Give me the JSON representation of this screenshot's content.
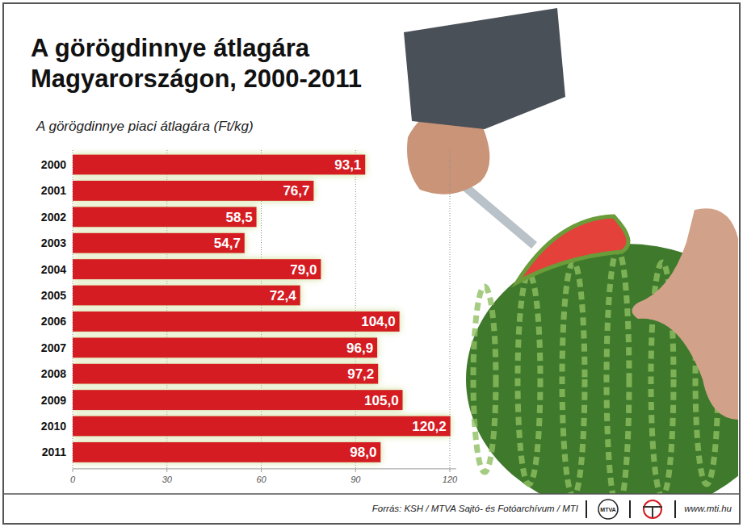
{
  "chart_data": {
    "type": "bar",
    "title": "A görögdinnye átlagára Magyarországon, 2000-2011",
    "subtitle": "A görögdinnye piaci átlagára (Ft/kg)",
    "categories": [
      "2000",
      "2001",
      "2002",
      "2003",
      "2004",
      "2005",
      "2006",
      "2007",
      "2008",
      "2009",
      "2010",
      "2011"
    ],
    "values": [
      93.1,
      76.7,
      58.5,
      54.7,
      79.0,
      72.4,
      104.0,
      96.9,
      97.2,
      105.0,
      120.2,
      98.0
    ],
    "value_labels": [
      "93,1",
      "76,7",
      "58,5",
      "54,7",
      "79,0",
      "72,4",
      "104,0",
      "96,9",
      "97,2",
      "105,0",
      "120,2",
      "98,0"
    ],
    "color": "#d41c24",
    "orientation": "horizontal",
    "data_labels": true,
    "xlim": [
      0,
      122
    ],
    "xticks": [
      0,
      30,
      60,
      90,
      120
    ],
    "grid": true,
    "source": "Forrás: KSH / MTVA Sajtó- és Fotóarchívum / MTI",
    "logo": "MTVA",
    "website": "www.mti.hu"
  }
}
